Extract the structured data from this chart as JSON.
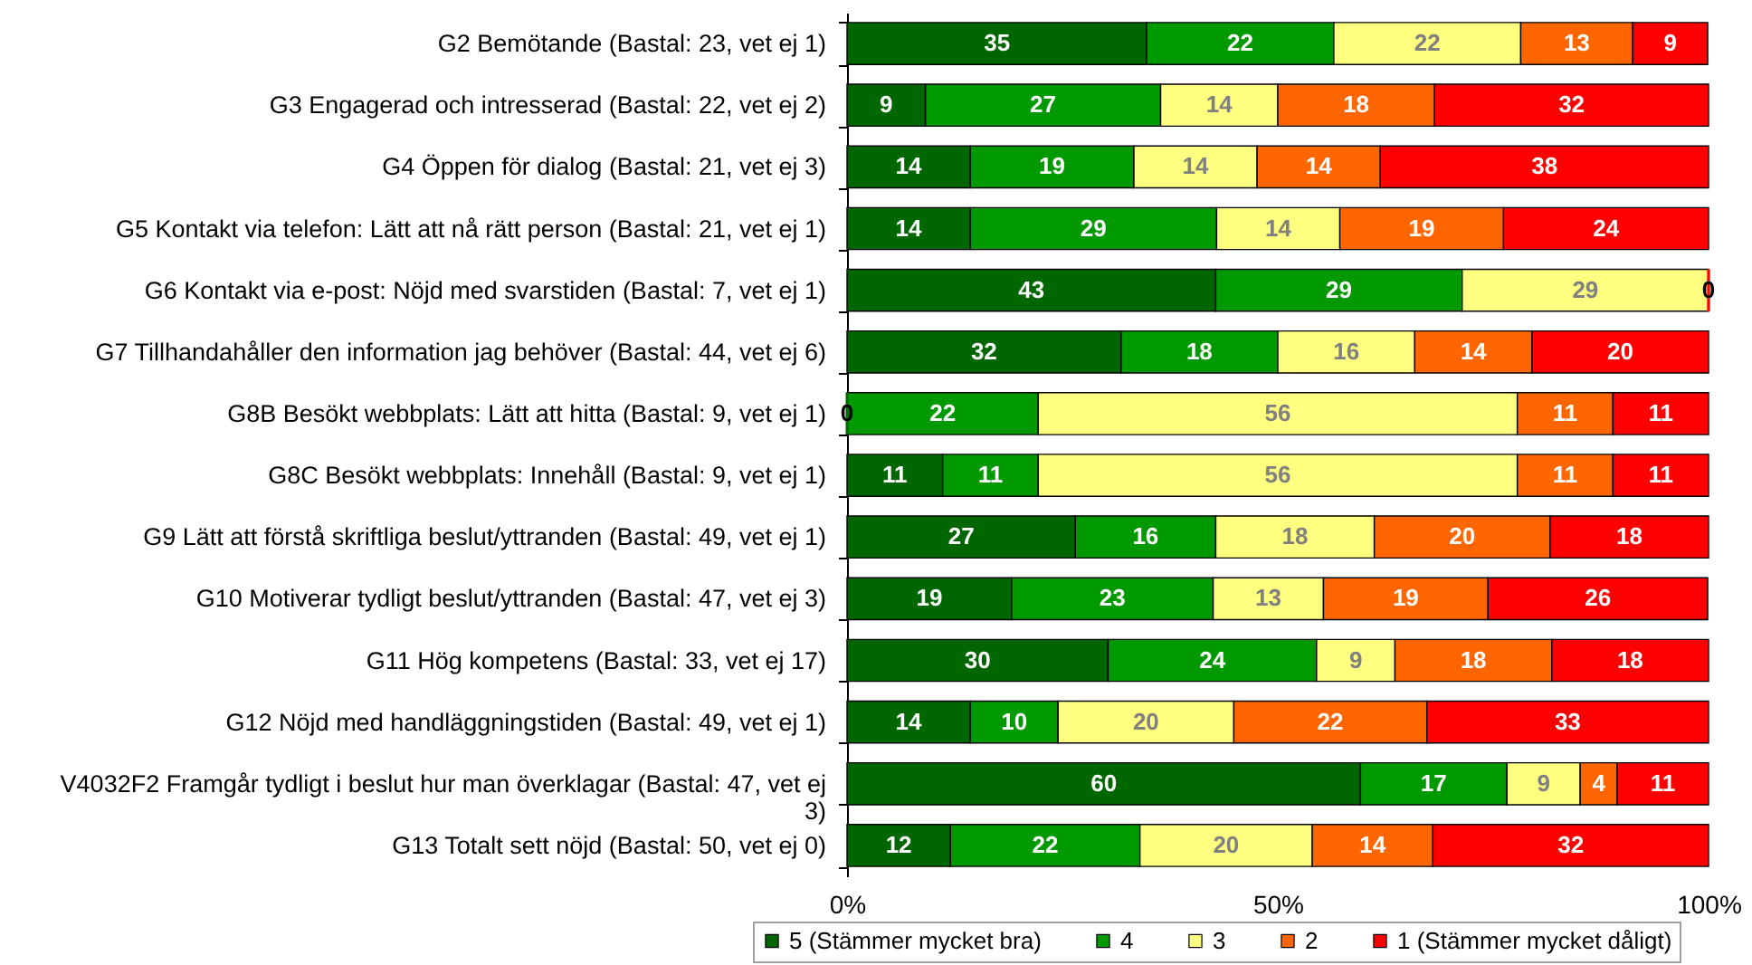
{
  "chart_data": {
    "type": "bar",
    "orientation": "horizontal",
    "stacked": true,
    "categories": [
      "G2 Bemötande (Bastal: 23, vet ej 1)",
      "G3 Engagerad och intresserad (Bastal: 22, vet ej 2)",
      "G4 Öppen för dialog (Bastal: 21, vet ej 3)",
      "G5 Kontakt via telefon: Lätt att nå rätt person (Bastal: 21, vet ej 1)",
      "G6 Kontakt via e-post: Nöjd med svarstiden (Bastal: 7, vet ej 1)",
      "G7 Tillhandahåller den information jag behöver (Bastal: 44, vet ej 6)",
      "G8B Besökt webbplats: Lätt att hitta (Bastal: 9, vet ej 1)",
      "G8C Besökt webbplats: Innehåll (Bastal: 9, vet ej 1)",
      "G9 Lätt att förstå skriftliga beslut/yttranden (Bastal: 49, vet ej 1)",
      "G10 Motiverar tydligt beslut/yttranden (Bastal: 47, vet ej 3)",
      "G11 Hög kompetens (Bastal: 33, vet ej 17)",
      "G12 Nöjd med handläggningstiden (Bastal: 49, vet ej 1)",
      "V4032F2 Framgår tydligt i beslut hur man överklagar (Bastal: 47, vet ej 3)",
      "G13 Totalt sett nöjd (Bastal: 50, vet ej 0)"
    ],
    "series": [
      {
        "name": "5 (Stämmer mycket bra)",
        "color": "#006600",
        "values": [
          34.8,
          9.1,
          14.3,
          14.3,
          42.8,
          31.8,
          0,
          11.1,
          26.5,
          19.1,
          30.3,
          14.3,
          59.6,
          12
        ],
        "value_labels": [
          "35",
          "9",
          "14",
          "14",
          "43",
          "32",
          "0",
          "11",
          "27",
          "19",
          "30",
          "14",
          "60",
          "12"
        ]
      },
      {
        "name": "4",
        "color": "#009900",
        "values": [
          21.7,
          27.3,
          19.0,
          28.6,
          28.6,
          18.2,
          22.2,
          11.1,
          16.3,
          23.4,
          24.2,
          10.2,
          17.0,
          22
        ],
        "value_labels": [
          "22",
          "27",
          "19",
          "29",
          "29",
          "18",
          "22",
          "11",
          "16",
          "23",
          "24",
          "10",
          "17",
          "22"
        ]
      },
      {
        "name": "3",
        "color": "#ffff80",
        "values": [
          21.7,
          13.6,
          14.3,
          14.3,
          28.6,
          15.9,
          55.6,
          55.6,
          18.4,
          12.8,
          9.1,
          20.4,
          8.5,
          20
        ],
        "value_labels": [
          "22",
          "14",
          "14",
          "14",
          "29",
          "16",
          "56",
          "56",
          "18",
          "13",
          "9",
          "20",
          "9",
          "20"
        ]
      },
      {
        "name": "2",
        "color": "#ff6600",
        "values": [
          13.0,
          18.2,
          14.3,
          19.0,
          0,
          13.6,
          11.1,
          11.1,
          20.4,
          19.1,
          18.2,
          22.4,
          4.3,
          14
        ],
        "value_labels": [
          "13",
          "18",
          "14",
          "19",
          null,
          "14",
          "11",
          "11",
          "20",
          "19",
          "18",
          "22",
          "4",
          "14"
        ]
      },
      {
        "name": "1 (Stämmer mycket dåligt)",
        "color": "#ff0000",
        "values": [
          8.7,
          31.8,
          38.1,
          23.8,
          0,
          20.5,
          11.1,
          11.1,
          18.4,
          25.5,
          18.2,
          32.7,
          10.6,
          32
        ],
        "value_labels": [
          "9",
          "32",
          "38",
          "24",
          "0",
          "20",
          "11",
          "11",
          "18",
          "26",
          "18",
          "33",
          "11",
          "32"
        ]
      }
    ],
    "xlim": [
      0,
      100
    ],
    "xticks": [
      {
        "value": 0,
        "label": "0%"
      },
      {
        "value": 50,
        "label": "50%"
      },
      {
        "value": 100,
        "label": "100%"
      }
    ],
    "grid": false,
    "legend": "bottom"
  }
}
